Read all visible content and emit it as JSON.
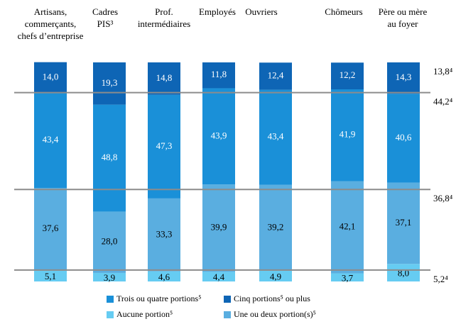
{
  "chart_data": {
    "type": "stacked-bar",
    "categories": [
      [
        "Artisans,",
        "commerçants,",
        "chefs d’entreprise"
      ],
      [
        "Cadres",
        "PIS³"
      ],
      [
        "Prof.",
        "intermédiaires"
      ],
      [
        "Employés"
      ],
      [
        "Ouvriers"
      ],
      [
        "Chômeurs"
      ],
      [
        "Père ou mère",
        "au foyer"
      ]
    ],
    "ylim": [
      0,
      100
    ],
    "series": [
      {
        "name": "Aucune portion⁵",
        "color": "#66ccf2",
        "label_color": "#000000",
        "values": [
          5.1,
          3.9,
          4.6,
          4.4,
          4.9,
          3.7,
          8.0
        ],
        "value_labels": [
          "5,1",
          "3,9",
          "4,6",
          "4,4",
          "4,9",
          "3,7",
          "8,0"
        ]
      },
      {
        "name": "Une ou deux portion(s)⁵",
        "color": "#5aaee0",
        "label_color": "#000000",
        "values": [
          37.6,
          28.0,
          33.3,
          39.9,
          39.2,
          42.1,
          37.1
        ],
        "value_labels": [
          "37,6",
          "28,0",
          "33,3",
          "39,9",
          "39,2",
          "42,1",
          "37,1"
        ]
      },
      {
        "name": "Trois ou quatre portions⁵",
        "color": "#1a90d8",
        "label_color": "#ffffff",
        "values": [
          43.4,
          48.8,
          47.3,
          43.9,
          43.4,
          41.9,
          40.6
        ],
        "value_labels": [
          "43,4",
          "48,8",
          "47,3",
          "43,9",
          "43,4",
          "41,9",
          "40,6"
        ]
      },
      {
        "name": "Cinq portions⁵ ou plus",
        "color": "#0e65b5",
        "label_color": "#ffffff",
        "values": [
          14.0,
          19.3,
          14.8,
          11.8,
          12.4,
          12.2,
          14.3
        ],
        "value_labels": [
          "14,0",
          "19,3",
          "14,8",
          "11,8",
          "12,4",
          "12,2",
          "14,3"
        ]
      }
    ],
    "reference": {
      "color": "#8c8c8c",
      "values": [
        5.2,
        36.8,
        44.2,
        13.8
      ],
      "value_labels": [
        "5,2⁴",
        "36,8⁴",
        "44,2⁴",
        "13,8⁴"
      ]
    }
  }
}
